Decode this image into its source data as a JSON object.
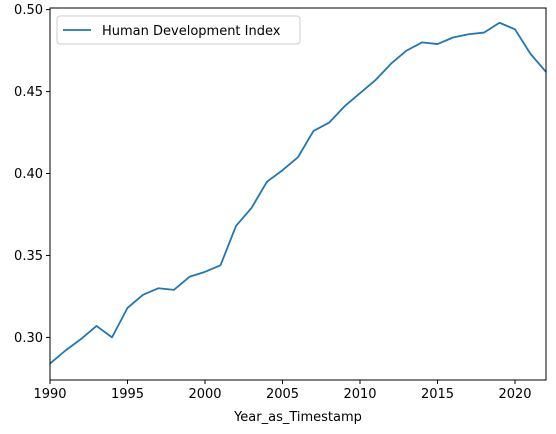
{
  "chart_data": {
    "type": "line",
    "xlabel": "Year_as_Timestamp",
    "ylabel": "",
    "xlim": [
      1990,
      2022
    ],
    "ylim": [
      0.274,
      0.501
    ],
    "xticks": [
      1990,
      1995,
      2000,
      2005,
      2010,
      2015,
      2020
    ],
    "xtick_labels": [
      "1990",
      "1995",
      "2000",
      "2005",
      "2010",
      "2015",
      "2020"
    ],
    "yticks": [
      0.3,
      0.35,
      0.4,
      0.45,
      0.5
    ],
    "ytick_labels": [
      "0.30",
      "0.35",
      "0.40",
      "0.45",
      "0.50"
    ],
    "grid": false,
    "legend": {
      "placement": "top-left"
    },
    "series": [
      {
        "name": "Human Development Index",
        "color": "#1f77b4",
        "x": [
          1990,
          1991,
          1992,
          1993,
          1994,
          1995,
          1996,
          1997,
          1998,
          1999,
          2000,
          2001,
          2002,
          2003,
          2004,
          2005,
          2006,
          2007,
          2008,
          2009,
          2010,
          2011,
          2012,
          2013,
          2014,
          2015,
          2016,
          2017,
          2018,
          2019,
          2020,
          2021,
          2022
        ],
        "y": [
          0.284,
          0.292,
          0.299,
          0.307,
          0.3,
          0.318,
          0.326,
          0.33,
          0.329,
          0.337,
          0.34,
          0.344,
          0.368,
          0.379,
          0.395,
          0.402,
          0.41,
          0.426,
          0.431,
          0.441,
          0.449,
          0.457,
          0.467,
          0.475,
          0.48,
          0.479,
          0.483,
          0.485,
          0.486,
          0.492,
          0.488,
          0.473,
          0.462
        ]
      }
    ]
  }
}
